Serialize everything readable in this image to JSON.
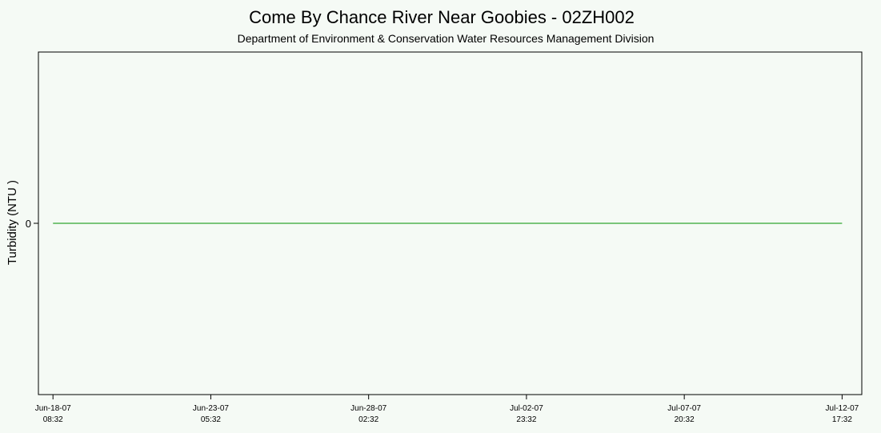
{
  "colors": {
    "background": "#f5faf5",
    "axis": "#000000",
    "series": "#009000"
  },
  "chart_data": {
    "type": "line",
    "title": "Come By Chance River Near Goobies - 02ZH002",
    "subtitle": "Department of Environment & Conservation Water Resources Management Division",
    "xlabel": "",
    "ylabel": "Turbidity (NTU )",
    "x_ticks": [
      {
        "date": "Jun-18-07",
        "time": "08:32"
      },
      {
        "date": "Jun-23-07",
        "time": "05:32"
      },
      {
        "date": "Jun-28-07",
        "time": "02:32"
      },
      {
        "date": "Jul-02-07",
        "time": "23:32"
      },
      {
        "date": "Jul-07-07",
        "time": "20:32"
      },
      {
        "date": "Jul-12-07",
        "time": "17:32"
      }
    ],
    "y_ticks": [
      "0"
    ],
    "ylim": [
      -1,
      1
    ],
    "xlim": [
      "2007-06-17T21:44",
      "2007-07-13T08:08"
    ],
    "series": [
      {
        "x": [
          "2007-06-18T08:32",
          "2007-07-12T17:32"
        ],
        "y": [
          0,
          0
        ]
      }
    ],
    "grid": false,
    "legend": "none"
  }
}
